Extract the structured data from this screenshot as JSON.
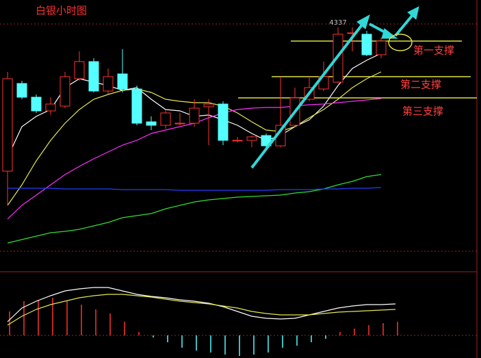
{
  "chart_data": [
    {
      "type": "candlestick",
      "title": "白银小时图",
      "open": [
        4127,
        4255,
        4235,
        4215,
        4222,
        4262,
        4287,
        4244,
        4269,
        4247,
        4199,
        4194,
        4197,
        4197,
        4221,
        4225,
        4172,
        4172,
        4179,
        4164,
        4194,
        4232,
        4247,
        4257,
        4329,
        4327,
        4297
      ],
      "high": [
        4272,
        4259,
        4239,
        4235,
        4272,
        4302,
        4292,
        4277,
        4305,
        4252,
        4207,
        4217,
        4212,
        4232,
        4232,
        4229,
        4177,
        4179,
        4182,
        4265,
        4249,
        4265,
        4287,
        4337,
        4337,
        4332,
        4322
      ],
      "low": [
        4077,
        4232,
        4212,
        4209,
        4219,
        4259,
        4242,
        4240,
        4242,
        4194,
        4187,
        4189,
        4194,
        4192,
        4165,
        4165,
        4169,
        4162,
        4159,
        4162,
        4192,
        4229,
        4244,
        4255,
        4302,
        4295,
        4292
      ],
      "close": [
        4262,
        4235,
        4215,
        4225,
        4265,
        4287,
        4244,
        4265,
        4247,
        4197,
        4194,
        4212,
        4197,
        4219,
        4225,
        4172,
        4172,
        4177,
        4164,
        4194,
        4234,
        4249,
        4265,
        4327,
        4329,
        4297,
        4317
      ],
      "up_color": "#ff3232",
      "down_color": "#54ffff",
      "series": [
        {
          "color": "#ffffff",
          "values": [
            4147,
            4192,
            4207,
            4217,
            4249,
            4262,
            4257,
            4252,
            4245,
            4249,
            4232,
            4217,
            4215,
            4207,
            4209,
            4202,
            4194,
            4182,
            4172,
            4179,
            4192,
            4202,
            4222,
            4252,
            4277,
            4289,
            4299
          ]
        },
        {
          "color": "#e8e850",
          "values": [
            4077,
            4107,
            4142,
            4172,
            4197,
            4217,
            4232,
            4239,
            4245,
            4247,
            4242,
            4232,
            4229,
            4227,
            4227,
            4222,
            4212,
            4199,
            4187,
            4185,
            4192,
            4205,
            4217,
            4232,
            4249,
            4262,
            4272
          ]
        },
        {
          "color": "#ff30ff",
          "values": [
            4057,
            4077,
            4092,
            4107,
            4122,
            4134,
            4145,
            4155,
            4165,
            4172,
            4182,
            4187,
            4192,
            4197,
            4205,
            4212,
            4217,
            4219,
            4220,
            4220,
            4222,
            4224,
            4225,
            4227,
            4229,
            4231,
            4233
          ]
        },
        {
          "color": "#30e030",
          "values": [
            4022,
            4027,
            4032,
            4037,
            4039,
            4042,
            4047,
            4052,
            4059,
            4062,
            4065,
            4072,
            4077,
            4082,
            4085,
            4087,
            4089,
            4090,
            4091,
            4092,
            4095,
            4097,
            4101,
            4107,
            4112,
            4119,
            4122
          ]
        },
        {
          "color": "#2040ff",
          "values": [
            4102,
            4102,
            4102,
            4102,
            4101,
            4101,
            4101,
            4101,
            4100,
            4100,
            4100,
            4100,
            4099,
            4099,
            4099,
            4099,
            4099,
            4099,
            4099,
            4100,
            4100,
            4100,
            4101,
            4101,
            4102,
            4102,
            4103
          ]
        }
      ],
      "peak_label": 4337,
      "annotations": [
        {
          "label": "第一支撑",
          "value": 4317
        },
        {
          "label": "第二支撑",
          "value": 4265
        },
        {
          "label": "第三支撑",
          "value": 4234
        }
      ],
      "annotation_color": "#e0e040",
      "ylim": [
        3982,
        4377
      ]
    },
    {
      "type": "bar",
      "values": [
        35,
        50,
        52,
        55,
        50,
        45,
        38,
        32,
        20,
        5,
        -3,
        -10,
        -18,
        -22,
        -25,
        -28,
        -30,
        -28,
        -25,
        -18,
        -15,
        -10,
        -5,
        5,
        10,
        15,
        18,
        20
      ],
      "up_color": "#ff3232",
      "down_color": "#54ffff",
      "series": [
        {
          "color": "#ffffff",
          "values": [
            20,
            40,
            50,
            58,
            65,
            68,
            70,
            70,
            65,
            60,
            57,
            55,
            52,
            50,
            47,
            42,
            35,
            28,
            25,
            24,
            25,
            30,
            35,
            40,
            43,
            45,
            45,
            46
          ]
        },
        {
          "color": "#e8e850",
          "values": [
            15,
            28,
            38,
            45,
            50,
            55,
            58,
            60,
            60,
            58,
            56,
            53,
            50,
            48,
            46,
            43,
            40,
            35,
            32,
            30,
            30,
            30,
            32,
            34,
            35,
            36,
            37,
            38
          ]
        }
      ],
      "ylim": [
        -30,
        90
      ]
    }
  ]
}
